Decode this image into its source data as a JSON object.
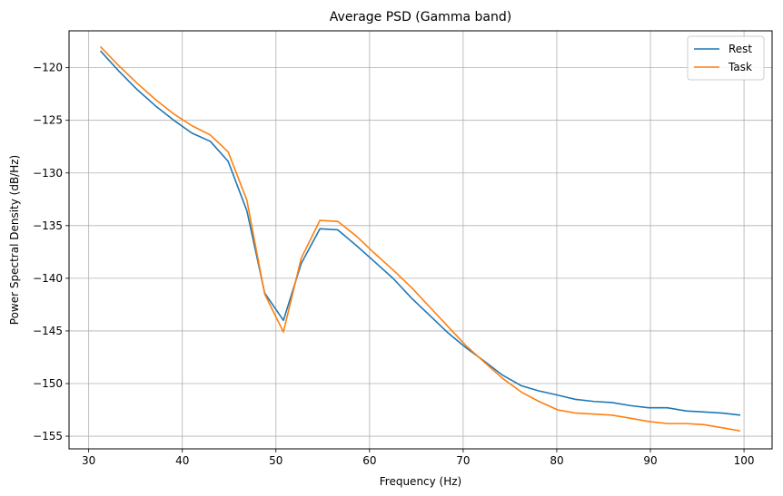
{
  "chart_data": {
    "type": "line",
    "title": "Average PSD (Gamma band)",
    "xlabel": "Frequency (Hz)",
    "ylabel": "Power Spectral Density (dB/Hz)",
    "xlim": [
      27.9,
      103.0
    ],
    "ylim": [
      -156.2,
      -116.5
    ],
    "xticks": [
      30,
      40,
      50,
      60,
      70,
      80,
      90,
      100
    ],
    "yticks": [
      -155,
      -150,
      -145,
      -140,
      -135,
      -130,
      -125,
      -120
    ],
    "xtick_labels": [
      "30",
      "40",
      "50",
      "60",
      "70",
      "80",
      "90",
      "100"
    ],
    "ytick_labels": [
      "−155",
      "−150",
      "−145",
      "−140",
      "−135",
      "−130",
      "−125",
      "−120"
    ],
    "grid": true,
    "legend_position": "top-right",
    "series": [
      {
        "name": "Rest",
        "color": "#1f77b4",
        "x": [
          31.25,
          33.2,
          35.2,
          37.1,
          39.1,
          41.0,
          43.0,
          44.9,
          46.9,
          48.8,
          50.8,
          52.7,
          54.7,
          56.6,
          58.6,
          60.5,
          62.5,
          64.5,
          66.4,
          68.4,
          70.3,
          72.3,
          74.2,
          76.2,
          78.1,
          80.1,
          82.0,
          84.0,
          85.9,
          87.9,
          89.8,
          91.8,
          93.8,
          95.7,
          97.7,
          99.6
        ],
        "y": [
          -118.4,
          -120.3,
          -122.1,
          -123.6,
          -125.0,
          -126.2,
          -127.0,
          -128.9,
          -133.6,
          -141.4,
          -144.0,
          -138.6,
          -135.3,
          -135.4,
          -136.9,
          -138.4,
          -140.0,
          -141.9,
          -143.5,
          -145.2,
          -146.6,
          -147.9,
          -149.2,
          -150.2,
          -150.7,
          -151.1,
          -151.5,
          -151.7,
          -151.8,
          -152.1,
          -152.3,
          -152.3,
          -152.6,
          -152.7,
          -152.8,
          -153.0
        ]
      },
      {
        "name": "Task",
        "color": "#ff7f0e",
        "x": [
          31.25,
          33.2,
          35.2,
          37.1,
          39.1,
          41.0,
          43.0,
          44.9,
          46.9,
          48.8,
          50.8,
          52.7,
          54.7,
          56.6,
          58.6,
          60.5,
          62.5,
          64.5,
          66.4,
          68.4,
          70.3,
          72.3,
          74.2,
          76.2,
          78.1,
          80.1,
          82.0,
          84.0,
          85.9,
          87.9,
          89.8,
          91.8,
          93.8,
          95.7,
          97.7,
          99.6
        ],
        "y": [
          -118.0,
          -119.8,
          -121.5,
          -123.0,
          -124.4,
          -125.5,
          -126.4,
          -128.0,
          -132.6,
          -141.5,
          -145.1,
          -138.1,
          -134.5,
          -134.6,
          -136.0,
          -137.6,
          -139.2,
          -140.9,
          -142.7,
          -144.6,
          -146.4,
          -148.0,
          -149.5,
          -150.8,
          -151.7,
          -152.5,
          -152.8,
          -152.9,
          -153.0,
          -153.3,
          -153.6,
          -153.8,
          -153.8,
          -153.9,
          -154.2,
          -154.5
        ]
      }
    ]
  }
}
